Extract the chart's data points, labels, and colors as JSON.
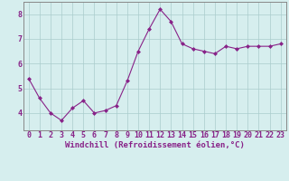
{
  "x": [
    0,
    1,
    2,
    3,
    4,
    5,
    6,
    7,
    8,
    9,
    10,
    11,
    12,
    13,
    14,
    15,
    16,
    17,
    18,
    19,
    20,
    21,
    22,
    23
  ],
  "y": [
    5.4,
    4.6,
    4.0,
    3.7,
    4.2,
    4.5,
    4.0,
    4.1,
    4.3,
    5.3,
    6.5,
    7.4,
    8.2,
    7.7,
    6.8,
    6.6,
    6.5,
    6.4,
    6.7,
    6.6,
    6.7,
    6.7,
    6.7,
    6.8
  ],
  "line_color": "#882288",
  "marker": "D",
  "marker_size": 2.0,
  "bg_color": "#d6eeee",
  "grid_color": "#aacccc",
  "xlabel": "Windchill (Refroidissement éolien,°C)",
  "ylim": [
    3.3,
    8.5
  ],
  "yticks": [
    4,
    5,
    6,
    7,
    8
  ],
  "xticks": [
    0,
    1,
    2,
    3,
    4,
    5,
    6,
    7,
    8,
    9,
    10,
    11,
    12,
    13,
    14,
    15,
    16,
    17,
    18,
    19,
    20,
    21,
    22,
    23
  ],
  "font_color": "#882288",
  "xlabel_fontsize": 6.5,
  "tick_fontsize": 6.0,
  "lw": 0.8
}
